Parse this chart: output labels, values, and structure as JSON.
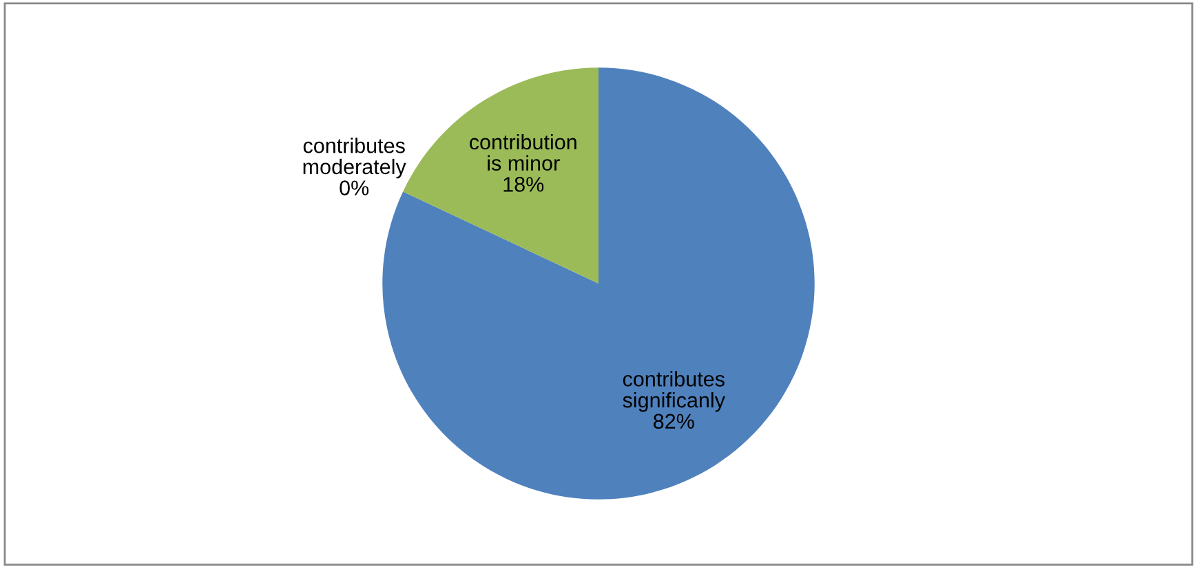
{
  "chart_data": {
    "type": "pie",
    "categories": [
      "contributes\nsignificanly",
      "contributes\nmoderately",
      "contribution\nis minor"
    ],
    "values": [
      82,
      0,
      18
    ],
    "value_labels": [
      "82%",
      "0%",
      "18%"
    ],
    "colors": [
      "#4f81bd",
      "#c0504d",
      "#9bbb59"
    ],
    "legend": false
  }
}
